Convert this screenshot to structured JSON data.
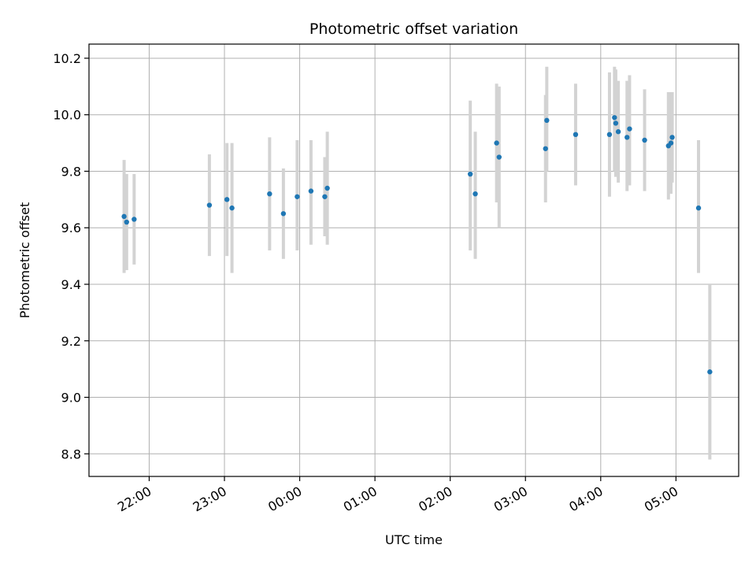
{
  "chart_data": {
    "type": "scatter",
    "title": "Photometric offset variation",
    "xlabel": "UTC time",
    "ylabel": "Photometric offset",
    "xlim": [
      "21:12",
      "05:50"
    ],
    "ylim": [
      8.72,
      10.25
    ],
    "x_ticks": [
      "22:00",
      "23:00",
      "00:00",
      "01:00",
      "02:00",
      "03:00",
      "04:00",
      "05:00"
    ],
    "y_ticks": [
      "8.8",
      "9.0",
      "9.2",
      "9.4",
      "9.6",
      "9.8",
      "10.0",
      "10.2"
    ],
    "grid": true,
    "colors": {
      "points": "#1f77b4",
      "error_bars": "#d3d3d3",
      "grid": "#b0b0b0"
    },
    "points": [
      {
        "t": "21:40",
        "y": 9.64,
        "low": 9.44,
        "high": 9.84
      },
      {
        "t": "21:42",
        "y": 9.62,
        "low": 9.45,
        "high": 9.79
      },
      {
        "t": "21:48",
        "y": 9.63,
        "low": 9.47,
        "high": 9.79
      },
      {
        "t": "22:48",
        "y": 9.68,
        "low": 9.5,
        "high": 9.86
      },
      {
        "t": "23:02",
        "y": 9.7,
        "low": 9.5,
        "high": 9.9
      },
      {
        "t": "23:06",
        "y": 9.67,
        "low": 9.44,
        "high": 9.9
      },
      {
        "t": "23:36",
        "y": 9.72,
        "low": 9.52,
        "high": 9.92
      },
      {
        "t": "23:47",
        "y": 9.65,
        "low": 9.49,
        "high": 9.81
      },
      {
        "t": "23:58",
        "y": 9.71,
        "low": 9.52,
        "high": 9.91
      },
      {
        "t": "00:09",
        "y": 9.73,
        "low": 9.54,
        "high": 9.91
      },
      {
        "t": "00:20",
        "y": 9.71,
        "low": 9.57,
        "high": 9.85
      },
      {
        "t": "00:22",
        "y": 9.74,
        "low": 9.54,
        "high": 9.94
      },
      {
        "t": "02:16",
        "y": 9.79,
        "low": 9.52,
        "high": 10.05
      },
      {
        "t": "02:20",
        "y": 9.72,
        "low": 9.49,
        "high": 9.94
      },
      {
        "t": "02:37",
        "y": 9.9,
        "low": 9.69,
        "high": 10.11
      },
      {
        "t": "02:39",
        "y": 9.85,
        "low": 9.6,
        "high": 10.1
      },
      {
        "t": "03:16",
        "y": 9.88,
        "low": 9.69,
        "high": 10.07
      },
      {
        "t": "03:17",
        "y": 9.98,
        "low": 9.8,
        "high": 10.17
      },
      {
        "t": "03:40",
        "y": 9.93,
        "low": 9.75,
        "high": 10.11
      },
      {
        "t": "04:07",
        "y": 9.93,
        "low": 9.71,
        "high": 10.15
      },
      {
        "t": "04:11",
        "y": 9.99,
        "low": 9.8,
        "high": 10.17
      },
      {
        "t": "04:12",
        "y": 9.97,
        "low": 9.78,
        "high": 10.16
      },
      {
        "t": "04:14",
        "y": 9.94,
        "low": 9.76,
        "high": 10.12
      },
      {
        "t": "04:21",
        "y": 9.92,
        "low": 9.73,
        "high": 10.12
      },
      {
        "t": "04:23",
        "y": 9.95,
        "low": 9.75,
        "high": 10.14
      },
      {
        "t": "04:35",
        "y": 9.91,
        "low": 9.73,
        "high": 10.09
      },
      {
        "t": "04:54",
        "y": 9.89,
        "low": 9.7,
        "high": 10.08
      },
      {
        "t": "04:56",
        "y": 9.9,
        "low": 9.72,
        "high": 10.08
      },
      {
        "t": "04:57",
        "y": 9.92,
        "low": 9.76,
        "high": 10.08
      },
      {
        "t": "05:18",
        "y": 9.67,
        "low": 9.44,
        "high": 9.91
      },
      {
        "t": "05:27",
        "y": 9.09,
        "low": 8.78,
        "high": 9.4
      }
    ]
  }
}
